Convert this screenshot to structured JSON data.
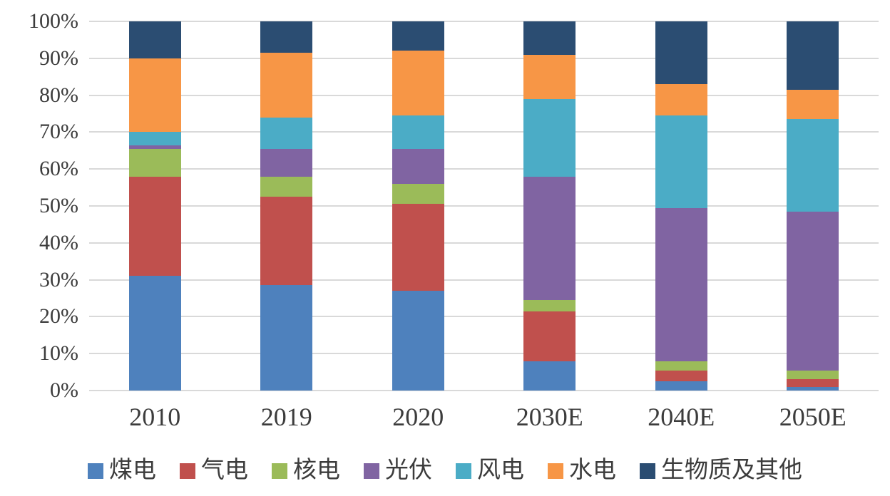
{
  "chart_data": {
    "type": "bar",
    "stacked": true,
    "percent_stacked": true,
    "title": "",
    "xlabel": "",
    "ylabel": "",
    "ylim": [
      0,
      100
    ],
    "grid": true,
    "legend_position": "bottom",
    "categories": [
      "2010",
      "2019",
      "2020",
      "2030E",
      "2040E",
      "2050E"
    ],
    "y_ticks": [
      "100%",
      "90%",
      "80%",
      "70%",
      "60%",
      "50%",
      "40%",
      "30%",
      "20%",
      "10%",
      "0%"
    ],
    "series": [
      {
        "name": "煤电",
        "color": "#4E81BD",
        "values": [
          31,
          28.5,
          27,
          8,
          2.5,
          1
        ]
      },
      {
        "name": "气电",
        "color": "#C0504D",
        "values": [
          27,
          24,
          23.5,
          13.5,
          3,
          2
        ]
      },
      {
        "name": "核电",
        "color": "#9BBB59",
        "values": [
          7.5,
          5.5,
          5.5,
          3,
          2.5,
          2.5
        ]
      },
      {
        "name": "光伏",
        "color": "#8064A2",
        "values": [
          1,
          7.5,
          9.5,
          33.5,
          41.5,
          43
        ]
      },
      {
        "name": "风电",
        "color": "#4BACC6",
        "values": [
          3.5,
          8.5,
          9,
          21,
          25,
          25
        ]
      },
      {
        "name": "水电",
        "color": "#F79646",
        "values": [
          20,
          17.5,
          17.5,
          12,
          8.5,
          8
        ]
      },
      {
        "name": "生物质及其他",
        "color": "#2B4D72",
        "values": [
          10,
          8.5,
          8,
          9,
          17,
          18.5
        ]
      }
    ]
  },
  "styles": {
    "grid_color": "#D9D9D9",
    "text_color": "#3C3C3C",
    "background": "#FFFFFF"
  }
}
